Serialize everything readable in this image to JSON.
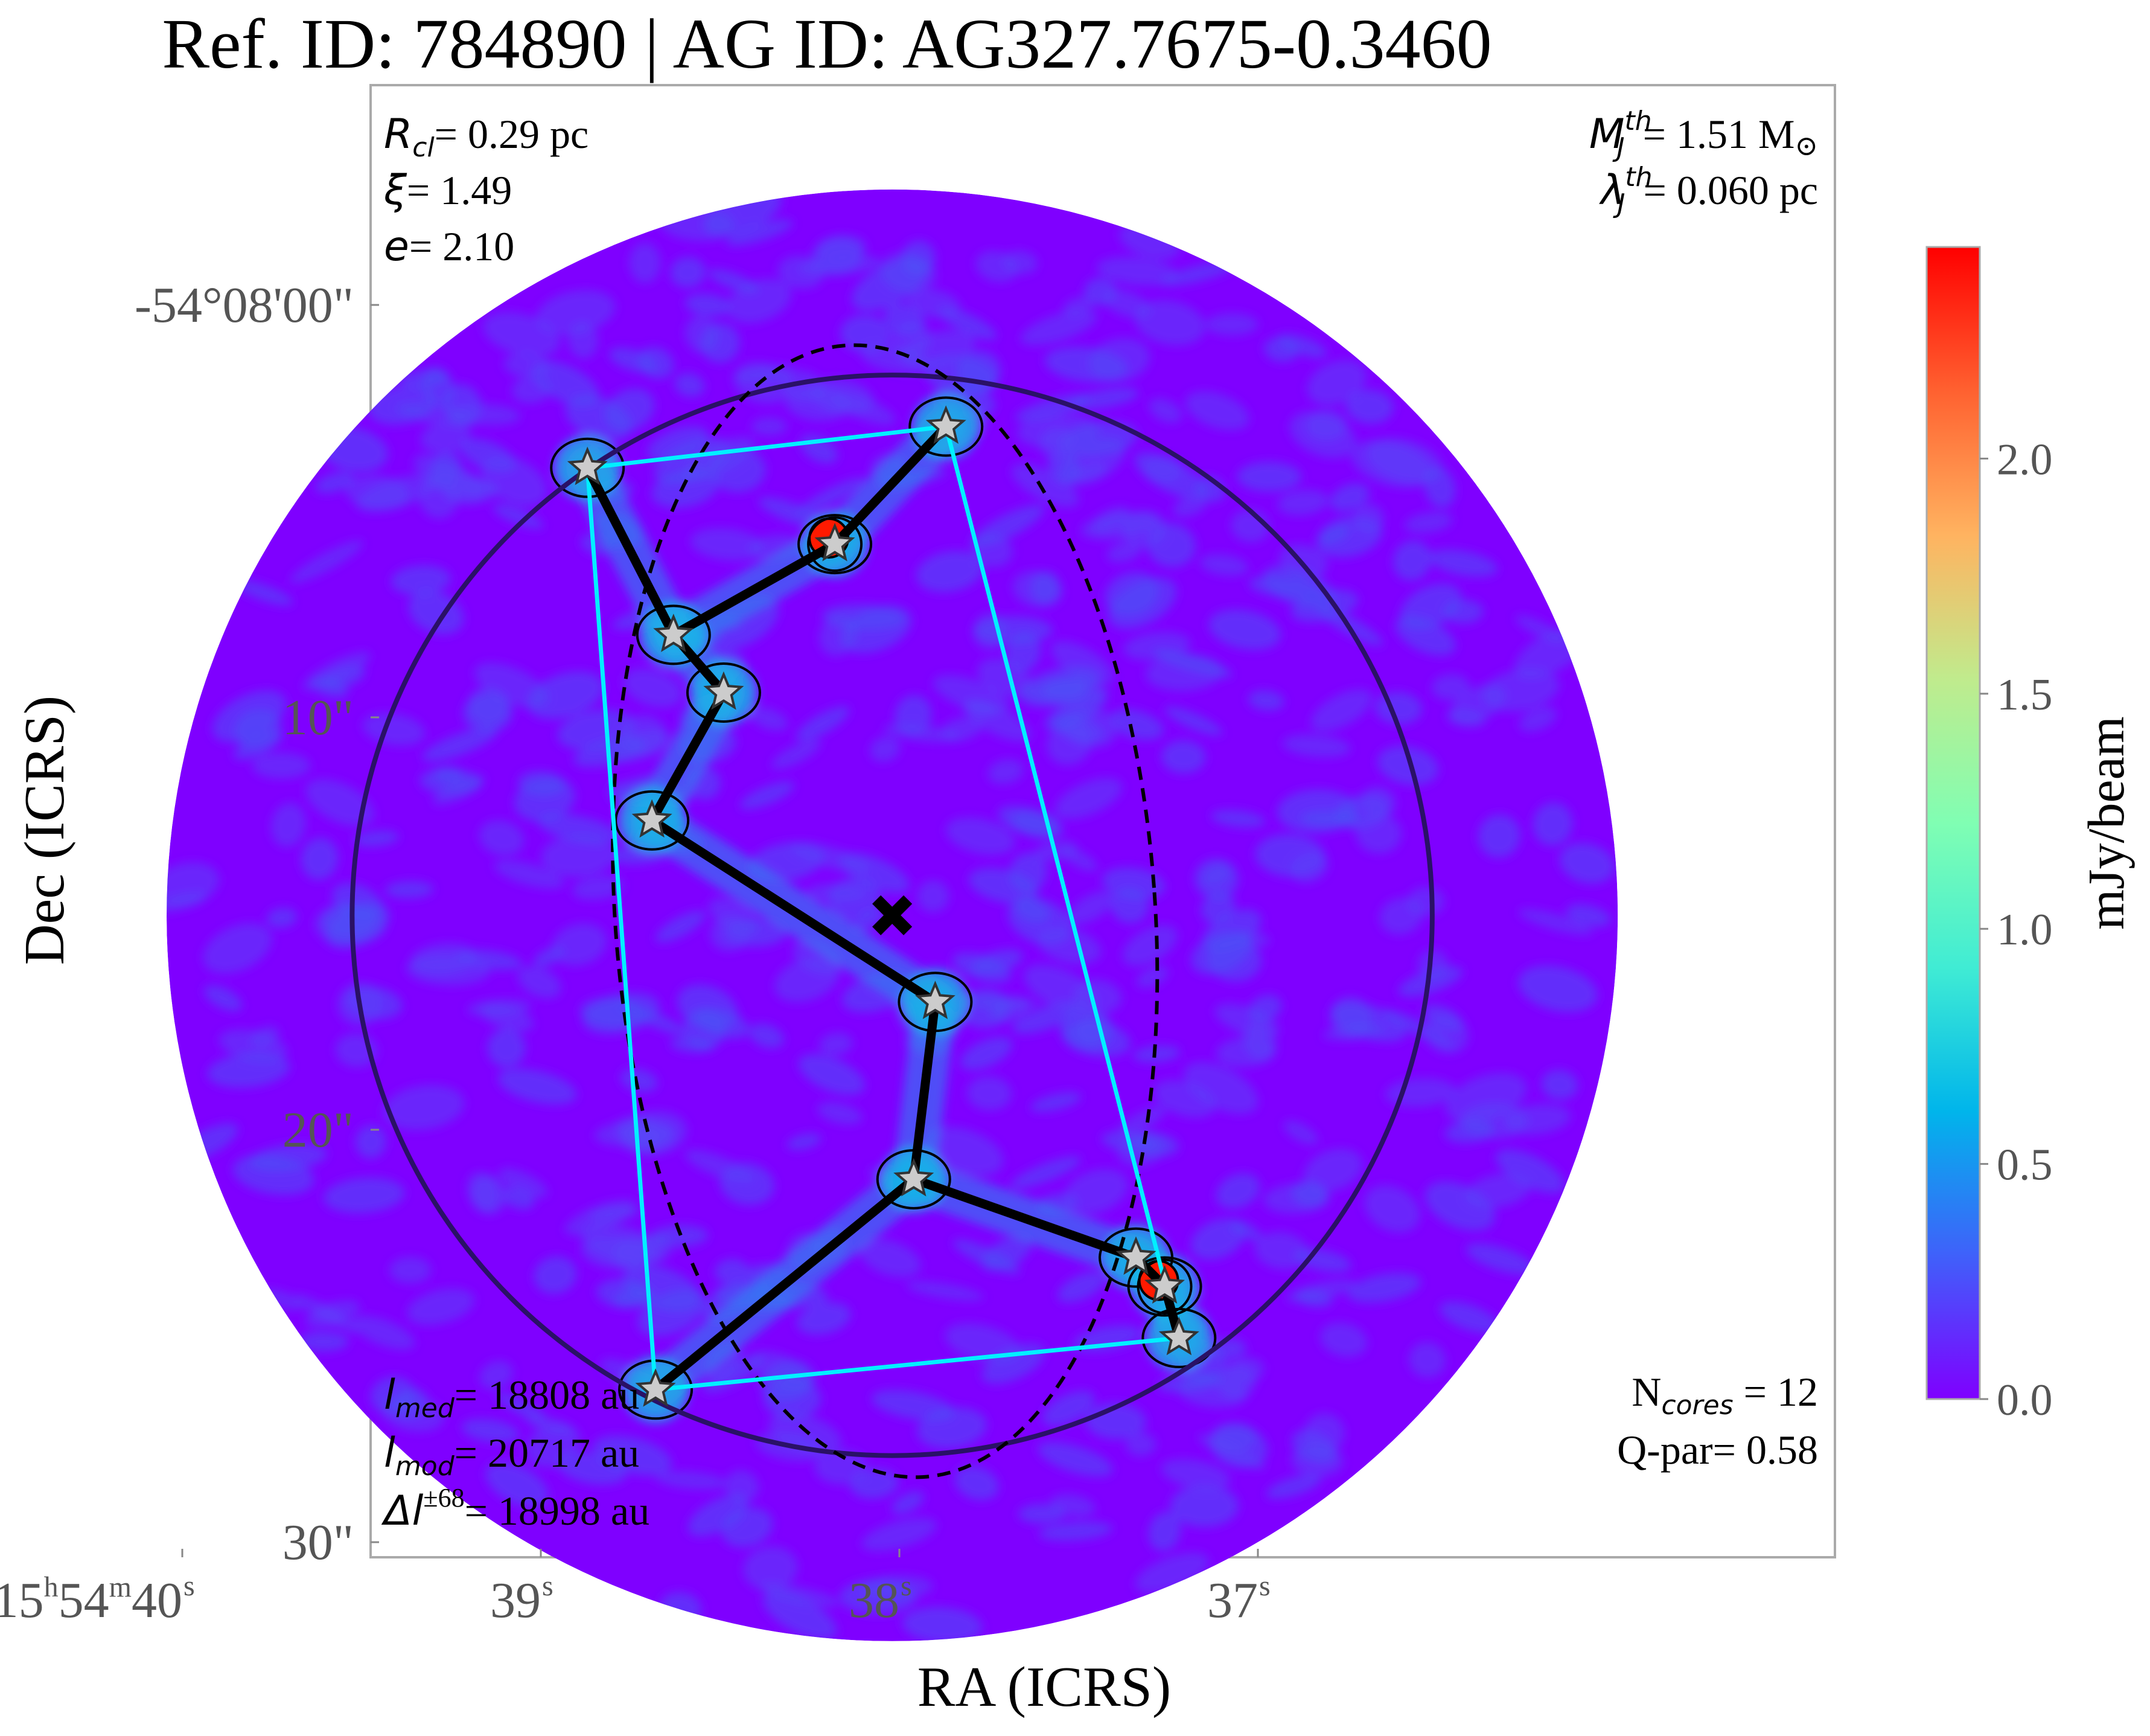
{
  "chart_data": {
    "type": "scatter",
    "title": "Ref. ID: 784890 | AG ID: AG327.7675-0.3460",
    "xlabel": "RA (ICRS)",
    "ylabel": "Dec (ICRS)",
    "x_ticks": [
      "40",
      "39",
      "38",
      "37"
    ],
    "x_tick_first_prefix": {
      "h": "15",
      "h_sup": "h",
      "m": "54",
      "m_sup": "m"
    },
    "x_tick_sec_sup": "s",
    "y_ticks": [
      "-54°08'00\"",
      "10\"",
      "20\"",
      "30\""
    ],
    "colorbar": {
      "label": "mJy/beam",
      "ticks": [
        "0.0",
        "0.5",
        "1.0",
        "1.5",
        "2.0"
      ],
      "range": [
        0.0,
        2.45
      ],
      "colormap": [
        "#7f00ff",
        "#3f61fa",
        "#00b5eb",
        "#40ecd4",
        "#80feb3",
        "#c0eb8d",
        "#ffb360",
        "#ff6130",
        "#ff0000"
      ]
    },
    "annotations": {
      "top_left": [
        {
          "sym": "R",
          "sub": "cl",
          "val": "= 0.29 pc"
        },
        {
          "sym": "ξ",
          "sub": "",
          "val": "= 1.49"
        },
        {
          "sym": "e",
          "sub": "",
          "val": "= 2.10"
        }
      ],
      "top_right": [
        {
          "sym": "M",
          "sup": "th",
          "sub": "J",
          "val": "= 1.51 M",
          "tail": "⊙"
        },
        {
          "sym": "λ",
          "sup": "th",
          "sub": "J",
          "val": "= 0.060 pc",
          "tail": ""
        }
      ],
      "bottom_left": [
        {
          "sym": "l",
          "sub": "med",
          "sup": "",
          "val": "= 18808 au"
        },
        {
          "sym": "l",
          "sub": "mod",
          "sup": "",
          "val": "= 20717 au"
        },
        {
          "sym": "Δl",
          "sub": "",
          "sup": "±68",
          "val": "= 18998 au"
        }
      ],
      "bottom_right": [
        {
          "pre": "N",
          "sub": "cores",
          "val": " = 12"
        },
        {
          "pre": "Q-par= 0.58",
          "sub": "",
          "val": ""
        }
      ]
    },
    "cores": [
      {
        "ra_s": 38.87,
        "dec_s": 3.95
      },
      {
        "ra_s": 37.87,
        "dec_s": 2.95
      },
      {
        "ra_s": 38.18,
        "dec_s": 5.8
      },
      {
        "ra_s": 38.63,
        "dec_s": 8.0
      },
      {
        "ra_s": 38.49,
        "dec_s": 9.4
      },
      {
        "ra_s": 38.69,
        "dec_s": 12.5
      },
      {
        "ra_s": 37.9,
        "dec_s": 16.9
      },
      {
        "ra_s": 37.96,
        "dec_s": 21.2
      },
      {
        "ra_s": 37.34,
        "dec_s": 23.1
      },
      {
        "ra_s": 37.26,
        "dec_s": 23.8
      },
      {
        "ra_s": 37.22,
        "dec_s": 25.05
      },
      {
        "ra_s": 38.68,
        "dec_s": 26.3
      }
    ],
    "mst_edges": [
      [
        0,
        3
      ],
      [
        3,
        2
      ],
      [
        2,
        1
      ],
      [
        3,
        4
      ],
      [
        4,
        5
      ],
      [
        5,
        6
      ],
      [
        6,
        7
      ],
      [
        7,
        8
      ],
      [
        8,
        9
      ],
      [
        9,
        10
      ],
      [
        7,
        11
      ]
    ],
    "hull": [
      0,
      1,
      10,
      11
    ],
    "center": {
      "ra_s": 38.02,
      "dec_s": 14.8
    },
    "ellipse": {
      "ra_s": 38.04,
      "dec_s": 14.7,
      "a_arcsec": 13.75,
      "b_arcsec": 6.55,
      "angle_deg": -4
    },
    "clump_radius_arcsec": 13.1,
    "field_radius_arcsec": 17.6,
    "colors": {
      "hull": "#00f0ff",
      "mst": "#000000",
      "circle": "#2a1166",
      "background": "#7f00ff",
      "star_fill": "#cccccc"
    }
  }
}
